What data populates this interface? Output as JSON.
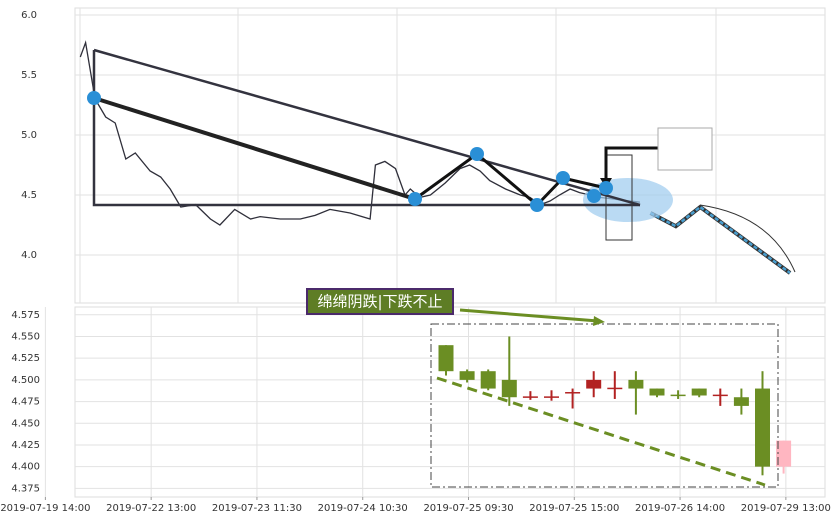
{
  "chart_data": [
    {
      "type": "line",
      "color": "#2f2f3a",
      "x": [
        0.33,
        0.38,
        0.47,
        0.57,
        0.66,
        0.76,
        0.85,
        0.99,
        1.09,
        1.18,
        1.28,
        1.42,
        1.56,
        1.65,
        1.79,
        1.94,
        2.03,
        2.22,
        2.41,
        2.55,
        2.69,
        2.88,
        3.07,
        3.12,
        3.21,
        3.31,
        3.4,
        3.45,
        3.54,
        3.64,
        3.78,
        3.92,
        4.01,
        4.11,
        4.2,
        4.35,
        4.49,
        4.58,
        4.68,
        4.77,
        4.86,
        4.96,
        5.05,
        5.15,
        5.24,
        5.34,
        5.43,
        5.53,
        5.62
      ],
      "values": [
        5.65,
        5.77,
        5.3,
        5.15,
        5.1,
        4.8,
        4.85,
        4.7,
        4.65,
        4.55,
        4.4,
        4.42,
        4.3,
        4.25,
        4.38,
        4.3,
        4.32,
        4.3,
        4.3,
        4.33,
        4.38,
        4.35,
        4.3,
        4.75,
        4.78,
        4.72,
        4.5,
        4.55,
        4.48,
        4.5,
        4.6,
        4.72,
        4.75,
        4.7,
        4.62,
        4.55,
        4.5,
        4.48,
        4.42,
        4.45,
        4.5,
        4.55,
        4.52,
        4.5,
        4.48,
        4.47,
        4.46,
        4.45,
        4.44
      ],
      "projection": {
        "color": "#4a9fd0",
        "x": [
          5.72,
          5.96,
          6.19,
          7.04
        ],
        "values": [
          4.35,
          4.24,
          4.4,
          3.85
        ]
      },
      "xlim": [
        0.28,
        7.37
      ],
      "ylim": [
        3.6,
        6.058
      ],
      "yticks": [
        {
          "value": 4.0,
          "label": "4.0"
        },
        4.5,
        {
          "value": 5.0,
          "label": "5.0"
        },
        5.5,
        {
          "value": 6.0,
          "label": "6.0"
        }
      ],
      "xticks": [
        {
          "value": 0,
          "label": "2019-07-19 14:00"
        },
        {
          "value": 1,
          "label": "2019-07-22 13:00"
        },
        {
          "value": 2,
          "label": "2019-07-23 11:30"
        },
        {
          "value": 3,
          "label": "2019-07-24 10:30"
        },
        {
          "value": 4,
          "label": "2019-07-25 09:30"
        },
        {
          "value": 5,
          "label": "2019-07-25 15:00"
        },
        {
          "value": 6,
          "label": "2019-07-26 14:00"
        },
        {
          "value": 7,
          "label": "2019-07-29 13:00"
        }
      ],
      "grid": true
    },
    {
      "type": "candlestick",
      "categories": [
        null,
        null,
        null,
        null,
        null,
        null,
        null,
        null,
        null,
        null,
        null,
        null,
        null,
        null,
        null,
        null,
        null
      ],
      "open": [
        4.54,
        4.51,
        4.51,
        4.5,
        4.48,
        4.48,
        4.485,
        4.49,
        4.49,
        4.5,
        4.49,
        4.483,
        4.49,
        4.482,
        4.48,
        4.49,
        4.4
      ],
      "close": [
        4.51,
        4.5,
        4.49,
        4.48,
        4.481,
        4.481,
        4.486,
        4.5,
        4.491,
        4.49,
        4.482,
        4.482,
        4.482,
        4.483,
        4.47,
        4.4,
        4.43
      ],
      "high": [
        4.54,
        4.512,
        4.512,
        4.55,
        4.487,
        4.488,
        4.49,
        4.51,
        4.51,
        4.51,
        4.49,
        4.488,
        4.49,
        4.49,
        4.49,
        4.51,
        4.43
      ],
      "low": [
        4.505,
        4.497,
        4.488,
        4.47,
        4.477,
        4.476,
        4.467,
        4.48,
        4.478,
        4.46,
        4.48,
        4.478,
        4.48,
        4.47,
        4.46,
        4.39,
        4.392
      ],
      "colors": [
        "#6b8e23",
        "#6b8e23",
        "#6b8e23",
        "#6b8e23",
        "#b22222",
        "#b22222",
        "#b22222",
        "#b22222",
        "#b22222",
        "#6b8e23",
        "#6b8e23",
        "#6b8e23",
        "#6b8e23",
        "#b22222",
        "#6b8e23",
        "#6b8e23",
        "#ffb6c1"
      ],
      "ylim": [
        4.365,
        4.584
      ],
      "yticks": [
        4.375,
        {
          "value": 4.4,
          "label": "4.400"
        },
        4.425,
        {
          "value": 4.45,
          "label": "4.450"
        },
        4.475,
        {
          "value": 4.5,
          "label": "4.500"
        },
        4.525,
        {
          "value": 4.55,
          "label": "4.550"
        },
        4.575
      ],
      "annotation": "绵绵阴跌|下跌不止",
      "grid": true
    }
  ]
}
